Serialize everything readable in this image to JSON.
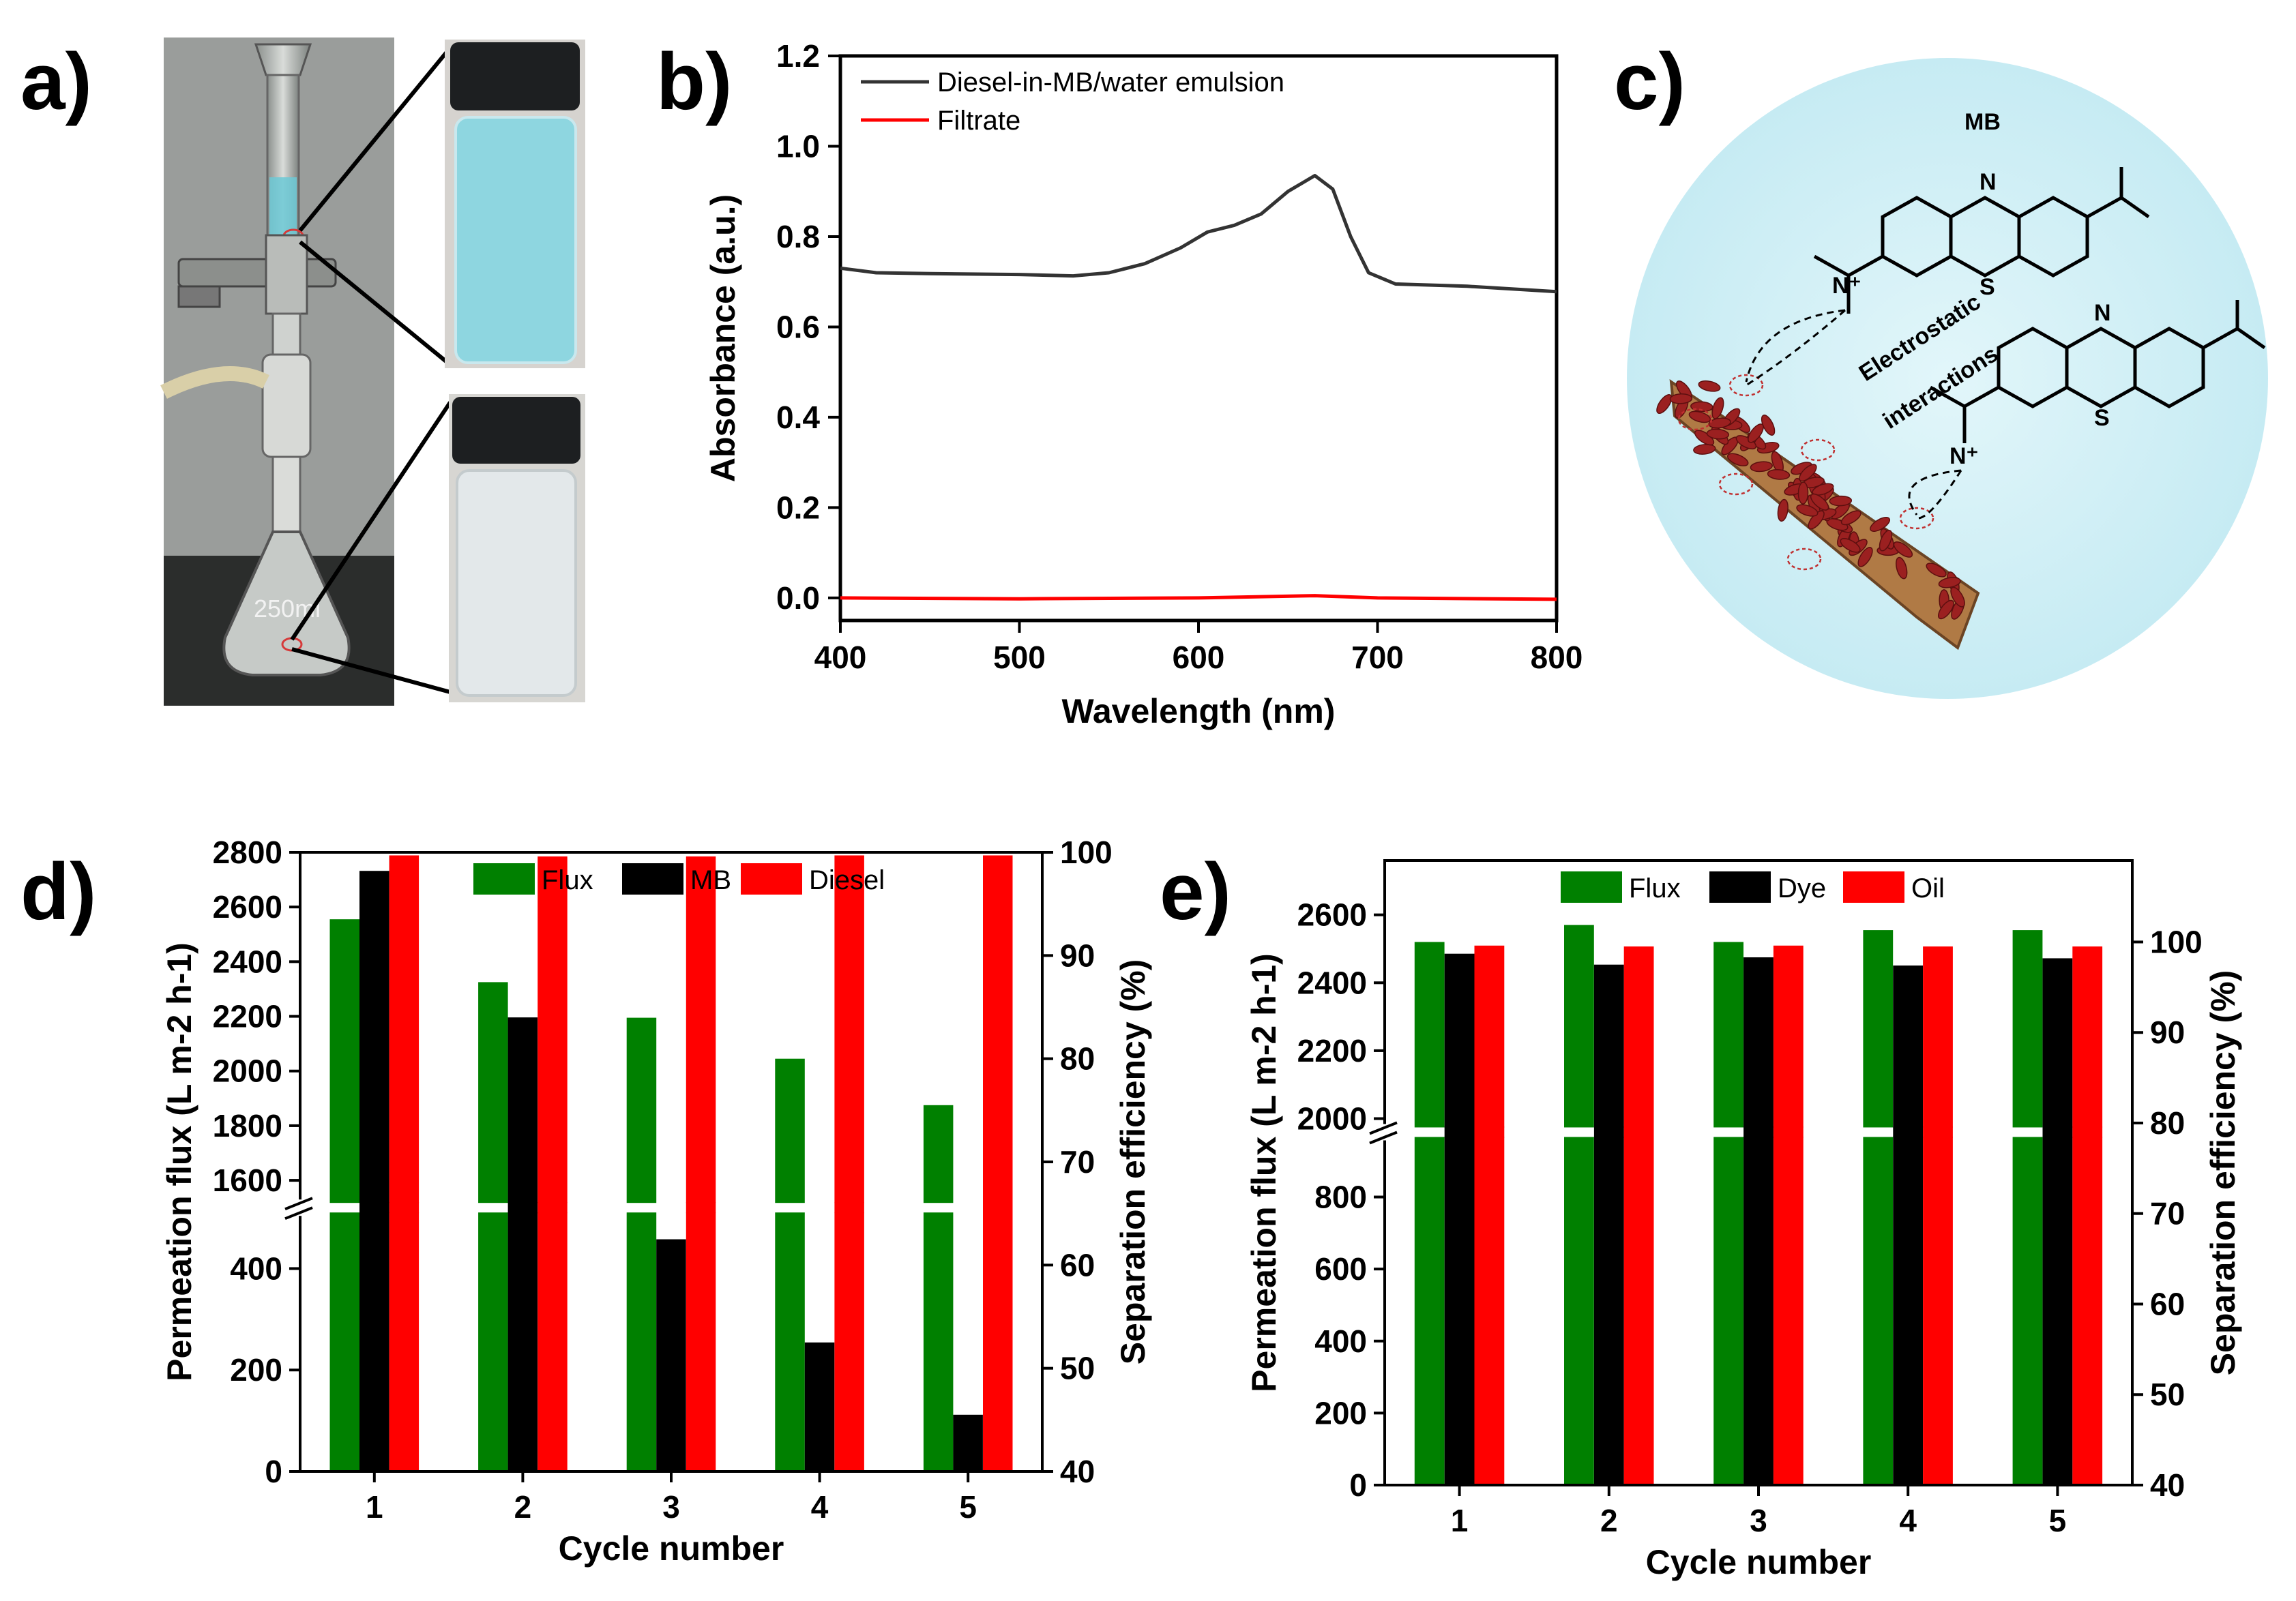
{
  "panels": {
    "a": "a)",
    "b": "b)",
    "c": "c)",
    "d": "d)",
    "e": "e)"
  },
  "photo": {
    "flask_label": "250ml"
  },
  "schematic": {
    "mb_label": "MB",
    "n_atom": "N",
    "s_atom": "S",
    "n_plus": "N⁺",
    "electrostatic": "Electrostatic",
    "interactions": "interactions"
  },
  "colors": {
    "green": "#008000",
    "black": "#000000",
    "red": "#ff0000",
    "dark_line": "#333333",
    "sky": "#cdeef5",
    "nanofiber": "#b07a45",
    "particle": "#8b1a1a",
    "blue_liquid": "#7fd0dc",
    "clear_liquid": "#dde5e7"
  },
  "chart_data": [
    {
      "type": "line",
      "panel": "b",
      "xlabel": "Wavelength (nm)",
      "ylabel": "Absorbance (a.u.)",
      "xlim": [
        400,
        800
      ],
      "ylim": [
        -0.05,
        1.2
      ],
      "xticks": [
        "400",
        "500",
        "600",
        "700",
        "800"
      ],
      "yticks": [
        "0.0",
        "0.2",
        "0.4",
        "0.6",
        "0.8",
        "1.0",
        "1.2"
      ],
      "legend_position": "top-left",
      "series": [
        {
          "name": "Diesel-in-MB/water emulsion",
          "color": "#333333",
          "points": [
            [
              400,
              0.73
            ],
            [
              420,
              0.72
            ],
            [
              450,
              0.718
            ],
            [
              500,
              0.716
            ],
            [
              530,
              0.713
            ],
            [
              550,
              0.72
            ],
            [
              570,
              0.74
            ],
            [
              590,
              0.775
            ],
            [
              605,
              0.81
            ],
            [
              620,
              0.825
            ],
            [
              635,
              0.85
            ],
            [
              650,
              0.9
            ],
            [
              665,
              0.935
            ],
            [
              675,
              0.905
            ],
            [
              685,
              0.8
            ],
            [
              695,
              0.72
            ],
            [
              710,
              0.695
            ],
            [
              750,
              0.69
            ],
            [
              800,
              0.678
            ]
          ]
        },
        {
          "name": "Filtrate",
          "color": "#ff0000",
          "points": [
            [
              400,
              0.0
            ],
            [
              500,
              -0.002
            ],
            [
              600,
              0.0
            ],
            [
              665,
              0.005
            ],
            [
              700,
              0.0
            ],
            [
              800,
              -0.003
            ]
          ]
        }
      ]
    },
    {
      "type": "bar",
      "panel": "d",
      "xlabel": "Cycle number",
      "ylabel_left": "Permeation flux (L m-2 h-1)",
      "ylabel_right": "Separation efficiency (%)",
      "categories": [
        "1",
        "2",
        "3",
        "4",
        "5"
      ],
      "ylim_left_lower": [
        0,
        520
      ],
      "ylim_left_upper": [
        1500,
        2800
      ],
      "ylim_right": [
        40,
        100
      ],
      "yticks_left": [
        "0",
        "200",
        "400",
        "1600",
        "1800",
        "2000",
        "2200",
        "2400",
        "2600",
        "2800"
      ],
      "yticks_right": [
        "40",
        "50",
        "60",
        "70",
        "80",
        "90",
        "100"
      ],
      "legend_position": "top-center",
      "series": [
        {
          "name": "Flux",
          "axis": "left",
          "color": "#008000",
          "values": [
            2555,
            2325,
            2195,
            2045,
            1875
          ]
        },
        {
          "name": "MB",
          "axis": "right",
          "color": "#000000",
          "values": [
            98.2,
            84.0,
            62.5,
            52.5,
            45.5
          ]
        },
        {
          "name": "Diesel",
          "axis": "right",
          "color": "#ff0000",
          "values": [
            99.7,
            99.6,
            99.6,
            99.7,
            99.7
          ]
        }
      ]
    },
    {
      "type": "bar",
      "panel": "e",
      "xlabel": "Cycle number",
      "ylabel_left": "Permeation flux (L m-2 h-1)",
      "ylabel_right": "Separation efficiency (%)",
      "categories": [
        "1",
        "2",
        "3",
        "4",
        "5"
      ],
      "ylim_left_lower": [
        0,
        980
      ],
      "ylim_left_upper": [
        1960,
        2760
      ],
      "ylim_right": [
        40,
        109
      ],
      "yticks_left": [
        "0",
        "200",
        "400",
        "600",
        "800",
        "2000",
        "2200",
        "2400",
        "2600"
      ],
      "yticks_right": [
        "40",
        "50",
        "60",
        "70",
        "80",
        "90",
        "100"
      ],
      "legend_position": "top-center",
      "series": [
        {
          "name": "Flux",
          "axis": "left",
          "color": "#008000",
          "values": [
            2520,
            2570,
            2520,
            2555,
            2555
          ]
        },
        {
          "name": "Dye",
          "axis": "right",
          "color": "#000000",
          "values": [
            98.7,
            97.5,
            98.3,
            97.4,
            98.2
          ]
        },
        {
          "name": "Oil",
          "axis": "right",
          "color": "#ff0000",
          "values": [
            99.6,
            99.5,
            99.6,
            99.5,
            99.5
          ]
        }
      ]
    }
  ]
}
